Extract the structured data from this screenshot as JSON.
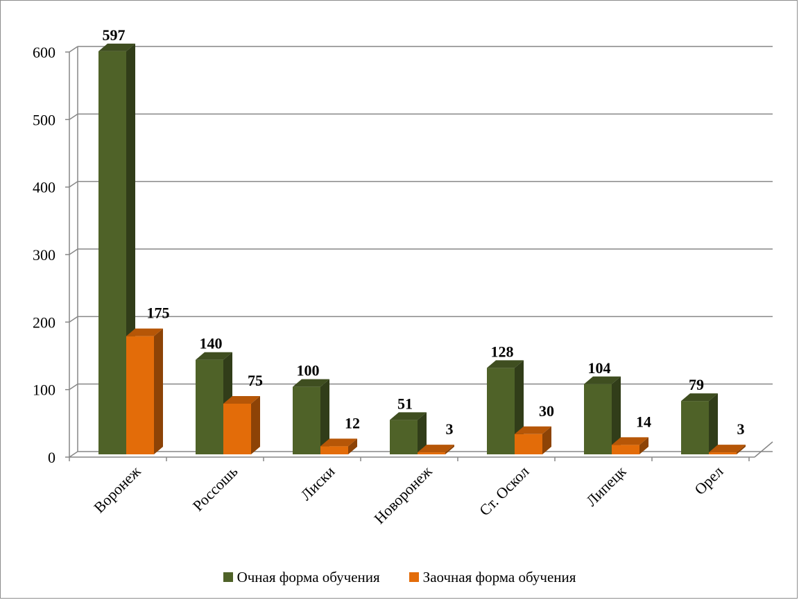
{
  "chart_data": {
    "type": "bar",
    "title": "",
    "xlabel": "",
    "ylabel": "",
    "ylim": [
      0,
      600
    ],
    "y_ticks": [
      "0",
      "100",
      "200",
      "300",
      "400",
      "500",
      "600"
    ],
    "grid": true,
    "legend_position": "bottom",
    "categories": [
      "Воронеж",
      "Россошь",
      "Лиски",
      "Новоронеж",
      "Ст. Оскол",
      "Липецк",
      "Орел"
    ],
    "series": [
      {
        "name": "Очная форма обучения",
        "values": [
          597,
          140,
          100,
          51,
          128,
          104,
          79
        ],
        "color": "#4f6228"
      },
      {
        "name": "Заочная форма обучения",
        "values": [
          175,
          75,
          12,
          3,
          30,
          14,
          3
        ],
        "color": "#e36c09"
      }
    ],
    "data_labels": [
      [
        "597",
        "140",
        "100",
        "51",
        "128",
        "104",
        "79"
      ],
      [
        "175",
        "75",
        "12",
        "3",
        "30",
        "14",
        "3"
      ]
    ]
  }
}
